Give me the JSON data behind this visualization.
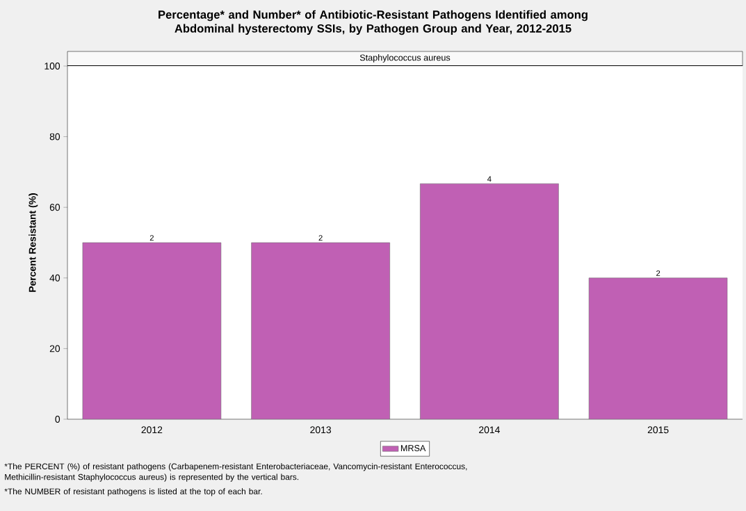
{
  "chart_data": {
    "type": "bar",
    "title": "Percentage* and Number* of Antibiotic-Resistant Pathogens Identified among Abdominal hysterectomy SSIs, by Pathogen Group and Year, 2012-2015",
    "subtitle": "Staphylococcus aureus",
    "ylabel": "Percent Resistant (%)",
    "categories": [
      "2012",
      "2013",
      "2014",
      "2015"
    ],
    "series": [
      {
        "name": "MRSA",
        "color": "#c060b4",
        "values": [
          50,
          50,
          66.7,
          40
        ]
      }
    ],
    "ylim": [
      0,
      100
    ],
    "yticks": [
      0,
      20,
      40,
      60,
      80,
      100
    ],
    "legend": "bottom",
    "grid": false,
    "annotations": [
      "*The PERCENT (%) of resistant pathogens (Carbapenem-resistant Enterobacteriaceae, Vancomycin-resistant Enterococcus, Methicillin-resistant Staphylococcus aureus) is represented by the vertical bars.",
      "*The NUMBER of resistant pathogens is listed at the top of each bar.",
      {
        "text": "2",
        "x": "2012",
        "y": 50
      },
      {
        "text": "2",
        "x": "2013",
        "y": 50
      },
      {
        "text": "4",
        "x": "2014",
        "y": 66.7
      },
      {
        "text": "2",
        "x": "2015",
        "y": 40
      }
    ]
  }
}
